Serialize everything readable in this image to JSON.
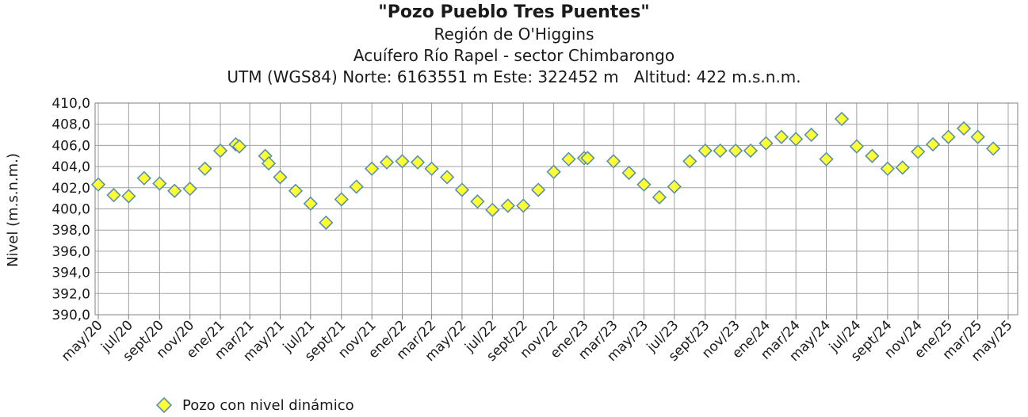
{
  "header": {
    "title": "\"Pozo Pueblo Tres Puentes\"",
    "subtitle1": "Región de O'Higgins",
    "subtitle2": "Acuífero Río Rapel - sector Chimbarongo",
    "subtitle3": "UTM (WGS84) Norte: 6163551 m Este: 322452 m   Altitud: 422 m.s.n.m."
  },
  "colors": {
    "marker_fill": "#ffff33",
    "marker_stroke": "#5b8fb0",
    "grid": "#a0a0a0",
    "axis": "#808080"
  },
  "chart_data": {
    "type": "scatter",
    "ylabel": "Nivel (m.s.n.m.)",
    "ylim": [
      390,
      410
    ],
    "yticks": [
      "390,0",
      "392,0",
      "394,0",
      "396,0",
      "398,0",
      "400,0",
      "402,0",
      "404,0",
      "406,0",
      "408,0",
      "410,0"
    ],
    "xticks": [
      "may/20",
      "jul/20",
      "sept/20",
      "nov/20",
      "ene/21",
      "mar/21",
      "may/21",
      "jul/21",
      "sept/21",
      "nov/21",
      "ene/22",
      "mar/22",
      "may/22",
      "jul/22",
      "sept/22",
      "nov/22",
      "ene/23",
      "mar/23",
      "may/23",
      "jul/23",
      "sept/23",
      "nov/23",
      "ene/24",
      "mar/24",
      "may/24",
      "jul/24",
      "sept/24",
      "nov/24",
      "ene/25",
      "mar/25",
      "may/25"
    ],
    "grid": true,
    "legend_position": "bottom-left",
    "series": [
      {
        "name": "Pozo con nivel dinámico",
        "marker": "diamond",
        "points": [
          {
            "x": "2020-05-01",
            "y": 402.3
          },
          {
            "x": "2020-06-01",
            "y": 401.3
          },
          {
            "x": "2020-07-01",
            "y": 401.2
          },
          {
            "x": "2020-08-01",
            "y": 402.9
          },
          {
            "x": "2020-09-01",
            "y": 402.4
          },
          {
            "x": "2020-10-01",
            "y": 401.7
          },
          {
            "x": "2020-11-01",
            "y": 401.9
          },
          {
            "x": "2020-12-01",
            "y": 403.8
          },
          {
            "x": "2021-01-01",
            "y": 405.5
          },
          {
            "x": "2021-02-01",
            "y": 406.1
          },
          {
            "x": "2021-02-08",
            "y": 405.9
          },
          {
            "x": "2021-04-01",
            "y": 405.0
          },
          {
            "x": "2021-04-08",
            "y": 404.3
          },
          {
            "x": "2021-05-01",
            "y": 403.0
          },
          {
            "x": "2021-06-01",
            "y": 401.7
          },
          {
            "x": "2021-07-01",
            "y": 400.5
          },
          {
            "x": "2021-08-01",
            "y": 398.7
          },
          {
            "x": "2021-09-01",
            "y": 400.9
          },
          {
            "x": "2021-10-01",
            "y": 402.1
          },
          {
            "x": "2021-11-01",
            "y": 403.8
          },
          {
            "x": "2021-12-01",
            "y": 404.4
          },
          {
            "x": "2022-01-01",
            "y": 404.5
          },
          {
            "x": "2022-02-01",
            "y": 404.4
          },
          {
            "x": "2022-03-01",
            "y": 403.8
          },
          {
            "x": "2022-04-01",
            "y": 403.0
          },
          {
            "x": "2022-05-01",
            "y": 401.8
          },
          {
            "x": "2022-06-01",
            "y": 400.7
          },
          {
            "x": "2022-07-01",
            "y": 399.9
          },
          {
            "x": "2022-08-01",
            "y": 400.3
          },
          {
            "x": "2022-09-01",
            "y": 400.3
          },
          {
            "x": "2022-10-01",
            "y": 401.8
          },
          {
            "x": "2022-11-01",
            "y": 403.5
          },
          {
            "x": "2022-12-01",
            "y": 404.7
          },
          {
            "x": "2023-01-01",
            "y": 404.8
          },
          {
            "x": "2023-01-08",
            "y": 404.8
          },
          {
            "x": "2023-03-01",
            "y": 404.5
          },
          {
            "x": "2023-04-01",
            "y": 403.4
          },
          {
            "x": "2023-05-01",
            "y": 402.3
          },
          {
            "x": "2023-06-01",
            "y": 401.1
          },
          {
            "x": "2023-07-01",
            "y": 402.1
          },
          {
            "x": "2023-08-01",
            "y": 404.5
          },
          {
            "x": "2023-09-01",
            "y": 405.5
          },
          {
            "x": "2023-10-01",
            "y": 405.5
          },
          {
            "x": "2023-11-01",
            "y": 405.5
          },
          {
            "x": "2023-12-01",
            "y": 405.5
          },
          {
            "x": "2024-01-01",
            "y": 406.2
          },
          {
            "x": "2024-02-01",
            "y": 406.8
          },
          {
            "x": "2024-03-01",
            "y": 406.6
          },
          {
            "x": "2024-04-01",
            "y": 407.0
          },
          {
            "x": "2024-05-01",
            "y": 404.7
          },
          {
            "x": "2024-06-01",
            "y": 408.5
          },
          {
            "x": "2024-07-01",
            "y": 405.9
          },
          {
            "x": "2024-08-01",
            "y": 405.0
          },
          {
            "x": "2024-09-01",
            "y": 403.8
          },
          {
            "x": "2024-10-01",
            "y": 403.9
          },
          {
            "x": "2024-11-01",
            "y": 405.4
          },
          {
            "x": "2024-12-01",
            "y": 406.1
          },
          {
            "x": "2025-01-01",
            "y": 406.8
          },
          {
            "x": "2025-02-01",
            "y": 407.6
          },
          {
            "x": "2025-03-01",
            "y": 406.8
          },
          {
            "x": "2025-04-01",
            "y": 405.7
          }
        ]
      }
    ]
  }
}
